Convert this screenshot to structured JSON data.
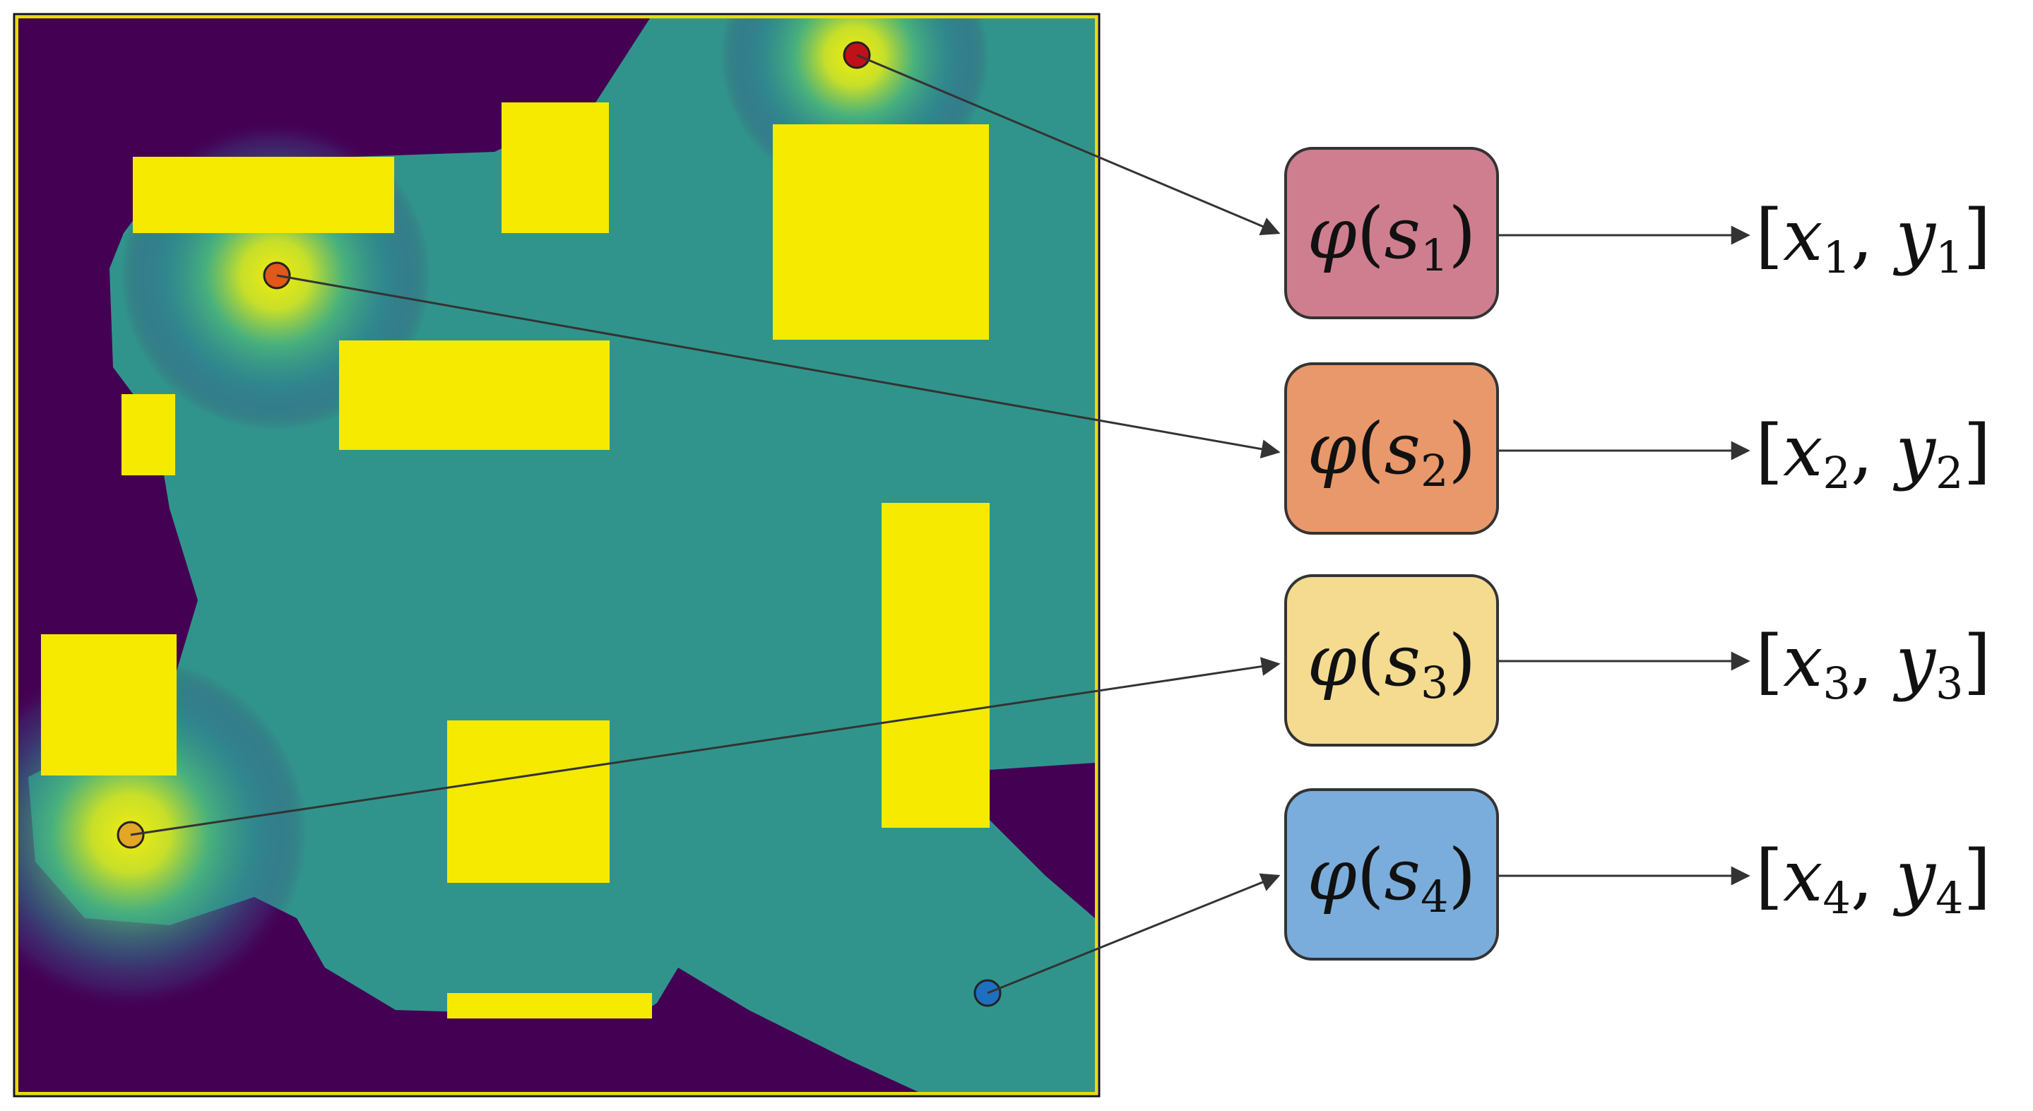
{
  "map": {
    "colors": {
      "far": "#440154",
      "mid": "#31948c",
      "obstacle": "#f5ea00",
      "glow": "#e8ea14",
      "border": "#f5ea00"
    }
  },
  "samples": [
    {
      "id": "s1",
      "color": "#c0101a",
      "func": "φ",
      "arg": "s",
      "sub": "1",
      "box_color": "#cf7e8f",
      "out_x": "x",
      "out_y": "y"
    },
    {
      "id": "s2",
      "color": "#e0581a",
      "func": "φ",
      "arg": "s",
      "sub": "2",
      "box_color": "#e8986a",
      "out_x": "x",
      "out_y": "y"
    },
    {
      "id": "s3",
      "color": "#e2a628",
      "func": "φ",
      "arg": "s",
      "sub": "3",
      "box_color": "#f4db90",
      "out_x": "x",
      "out_y": "y"
    },
    {
      "id": "s4",
      "color": "#1f6fc0",
      "func": "φ",
      "arg": "s",
      "sub": "4",
      "box_color": "#7aaddb",
      "out_x": "x",
      "out_y": "y"
    }
  ]
}
